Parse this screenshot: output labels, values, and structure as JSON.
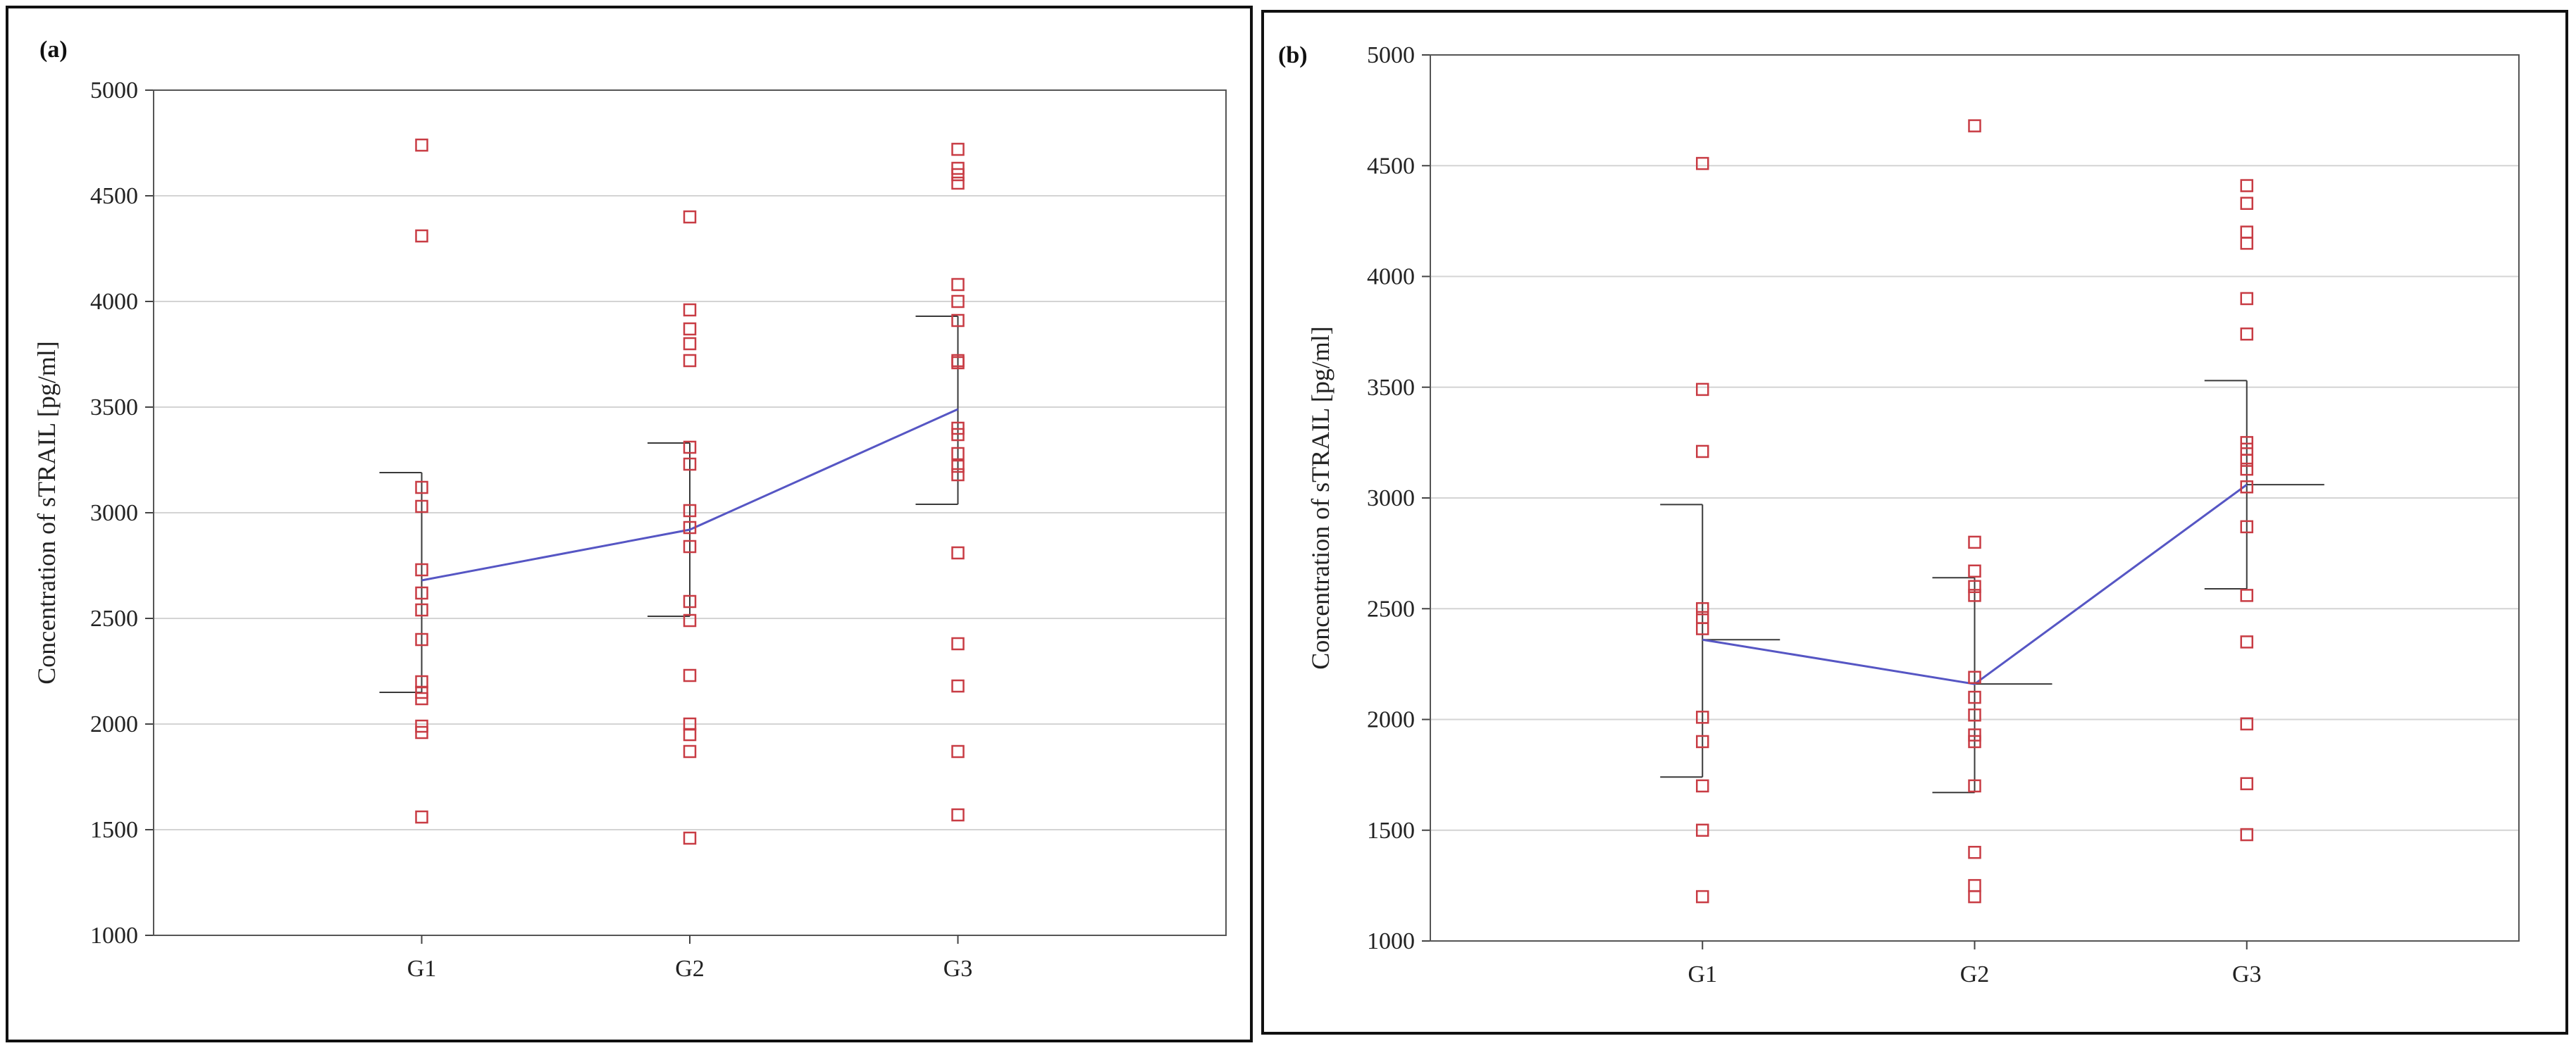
{
  "chart_data": [
    {
      "panel_label": "(a)",
      "type": "scatter",
      "xlabel": "",
      "ylabel": "Concentration of sTRAIL [pg/ml]",
      "categories": [
        "G1",
        "G2",
        "G3"
      ],
      "ylim": [
        1000,
        5000
      ],
      "yticks": [
        1000,
        1500,
        2000,
        2500,
        3000,
        3500,
        4000,
        4500,
        5000
      ],
      "grid": true,
      "points": [
        [
          4740,
          4310,
          3120,
          3030,
          2730,
          2620,
          2540,
          2400,
          2200,
          2150,
          2120,
          1990,
          1960,
          1560
        ],
        [
          4400,
          3960,
          3870,
          3800,
          3720,
          3310,
          3230,
          3010,
          2930,
          2840,
          2580,
          2490,
          2230,
          2000,
          1950,
          1870,
          1460
        ],
        [
          4720,
          4630,
          4600,
          4560,
          4080,
          4000,
          3910,
          3720,
          3710,
          3400,
          3370,
          3280,
          3220,
          3180,
          2810,
          2380,
          2180,
          1870,
          1570
        ]
      ],
      "means": [
        2680,
        2920,
        3490
      ],
      "error_bars": [
        [
          2150,
          3190
        ],
        [
          2510,
          3330
        ],
        [
          3040,
          3930
        ]
      ],
      "colors": {
        "points": "#c83c44",
        "line": "#5656c4",
        "error_bars": "#3a3a3a",
        "grid": "#d4d4d4"
      }
    },
    {
      "panel_label": "(b)",
      "type": "scatter",
      "xlabel": "",
      "ylabel": "Concentration of sTRAIL [pg/ml]",
      "categories": [
        "G1",
        "G2",
        "G3"
      ],
      "ylim": [
        1000,
        5000
      ],
      "yticks": [
        1000,
        1500,
        2000,
        2500,
        3000,
        3500,
        4000,
        4500,
        5000
      ],
      "grid": true,
      "points": [
        [
          4510,
          3490,
          3210,
          2500,
          2460,
          2410,
          2010,
          1900,
          1700,
          1500,
          1200
        ],
        [
          4680,
          2800,
          2670,
          2600,
          2560,
          2190,
          2100,
          2020,
          1930,
          1900,
          1700,
          1400,
          1250,
          1200
        ],
        [
          4410,
          4330,
          4200,
          4150,
          3900,
          3740,
          3250,
          3220,
          3170,
          3130,
          3050,
          2870,
          2560,
          2350,
          1980,
          1710,
          1480
        ]
      ],
      "means": [
        2360,
        2160,
        3060
      ],
      "error_bars": [
        [
          1740,
          2970
        ],
        [
          1670,
          2640
        ],
        [
          2590,
          3530
        ]
      ],
      "colors": {
        "points": "#c83c44",
        "line": "#5656c4",
        "error_bars": "#3a3a3a",
        "grid": "#d4d4d4"
      }
    }
  ]
}
